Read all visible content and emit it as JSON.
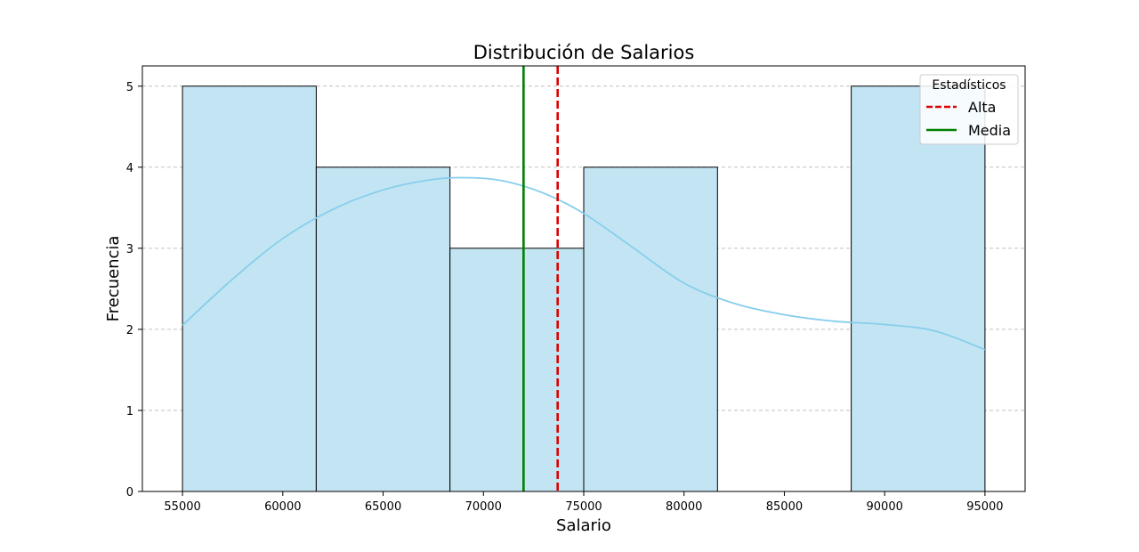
{
  "chart_data": {
    "type": "bar",
    "title": "Distribución de Salarios",
    "xlabel": "Salario",
    "ylabel": "Frecuencia",
    "xlim": [
      53000,
      97000
    ],
    "ylim": [
      0,
      5.25
    ],
    "xticks": [
      55000,
      60000,
      65000,
      70000,
      75000,
      80000,
      85000,
      90000,
      95000
    ],
    "yticks": [
      0,
      1,
      2,
      3,
      4,
      5
    ],
    "grid": "y-dashed",
    "bins": [
      {
        "x0": 55000,
        "x1": 61666.67,
        "count": 5
      },
      {
        "x0": 61666.67,
        "x1": 68333.33,
        "count": 4
      },
      {
        "x0": 68333.33,
        "x1": 75000,
        "count": 3
      },
      {
        "x0": 75000,
        "x1": 81666.67,
        "count": 4
      },
      {
        "x0": 81666.67,
        "x1": 88333.33,
        "count": 0
      },
      {
        "x0": 88333.33,
        "x1": 95000,
        "count": 5
      }
    ],
    "kde": {
      "x": [
        55000,
        57500,
        60000,
        62500,
        65000,
        67500,
        69300,
        71000,
        73000,
        75000,
        77500,
        80000,
        82500,
        85000,
        87500,
        90000,
        92500,
        95000
      ],
      "y": [
        2.05,
        2.62,
        3.12,
        3.48,
        3.72,
        3.85,
        3.87,
        3.83,
        3.68,
        3.43,
        3.0,
        2.57,
        2.32,
        2.18,
        2.1,
        2.06,
        1.98,
        1.75
      ]
    },
    "vlines": [
      {
        "name": "Media",
        "x": 72000,
        "color": "#008000",
        "style": "solid"
      },
      {
        "name": "Alta",
        "x": 73700,
        "color": "#e00000",
        "style": "dashed"
      }
    ],
    "legend": {
      "title": "Estadísticos",
      "placement": "top-right",
      "entries": [
        {
          "label": "Alta",
          "color": "#e00000",
          "style": "dashed"
        },
        {
          "label": "Media",
          "color": "#008000",
          "style": "solid"
        }
      ]
    },
    "colors": {
      "bar_fill": "#c3e5f3",
      "bar_edge": "#000000",
      "kde": "#87ceeb",
      "grid": "#c0c0c0"
    }
  }
}
